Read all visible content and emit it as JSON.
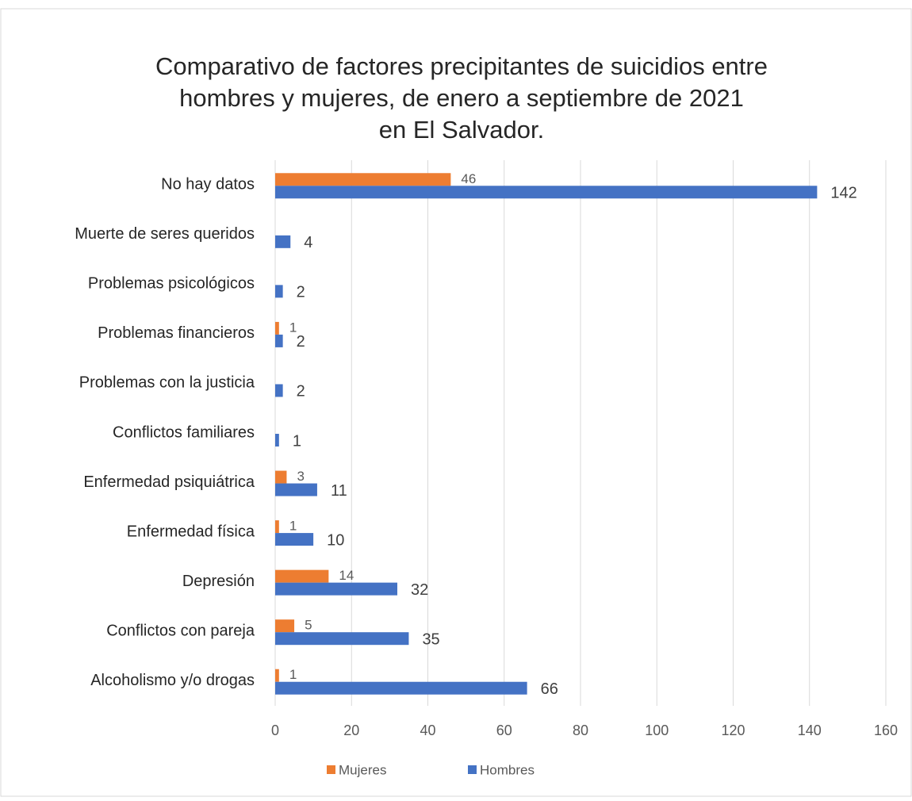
{
  "chart_data": {
    "type": "hbar",
    "title": [
      "Comparativo de factores precipitantes de suicidios entre",
      "hombres y mujeres, de enero a septiembre de 2021",
      "en El Salvador."
    ],
    "categories": [
      "No hay datos",
      "Muerte de seres queridos",
      "Problemas psicológicos",
      "Problemas financieros",
      "Problemas con la justicia",
      "Conflictos familiares",
      "Enfermedad psiquiátrica",
      "Enfermedad física",
      "Depresión",
      "Conflictos con pareja",
      "Alcoholismo y/o drogas"
    ],
    "series": [
      {
        "name": "Mujeres",
        "color": "#ed7d31",
        "values": [
          46,
          null,
          null,
          1,
          null,
          null,
          3,
          1,
          14,
          5,
          1
        ]
      },
      {
        "name": "Hombres",
        "color": "#4472c4",
        "values": [
          142,
          4,
          2,
          2,
          2,
          1,
          11,
          10,
          32,
          35,
          66
        ]
      }
    ],
    "xlim": [
      0,
      160
    ],
    "xticks": [
      0,
      20,
      40,
      60,
      80,
      100,
      120,
      140,
      160
    ],
    "grid": true,
    "legend": "bottom"
  }
}
